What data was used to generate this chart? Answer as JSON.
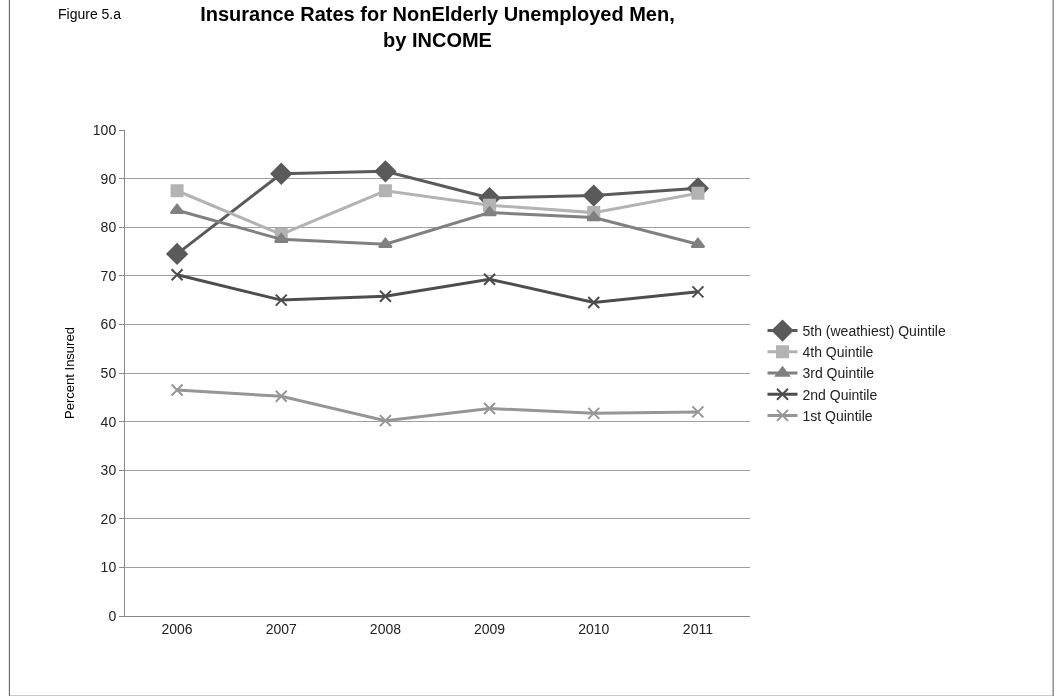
{
  "chart_data": {
    "type": "line",
    "title": "Insurance Rates for NonElderly Unemployed Men,\nby INCOME",
    "ylabel": "Percent Insured",
    "annotations": [
      "Figure 5.a"
    ],
    "categories": [
      "2006",
      "2007",
      "2008",
      "2009",
      "2010",
      "2011"
    ],
    "series": [
      {
        "name": "5th (weathiest) Quintile",
        "color": "#5a5a5a",
        "marker": "diamond",
        "values": [
          74.5,
          91,
          91.5,
          86,
          86.5,
          88
        ]
      },
      {
        "name": "4th Quintile",
        "color": "#b3b3b3",
        "marker": "square",
        "values": [
          87.5,
          78.5,
          87.5,
          84.5,
          83,
          87
        ]
      },
      {
        "name": "3rd Quintile",
        "color": "#808080",
        "marker": "triangle",
        "values": [
          83.5,
          77.5,
          76.5,
          83,
          82,
          76.5
        ]
      },
      {
        "name": "2nd Quintile",
        "color": "#4d4d4d",
        "marker": "cross",
        "values": [
          70.2,
          65,
          65.8,
          69.3,
          64.5,
          66.7
        ]
      },
      {
        "name": "1st Quintile",
        "color": "#969696",
        "marker": "cross",
        "values": [
          46.5,
          45.2,
          40.2,
          42.7,
          41.7,
          42
        ]
      }
    ],
    "ylim": [
      0,
      100
    ],
    "yticks": [
      0,
      10,
      20,
      30,
      40,
      50,
      60,
      70,
      80,
      90,
      100
    ],
    "grid": "y",
    "legend": "right"
  }
}
